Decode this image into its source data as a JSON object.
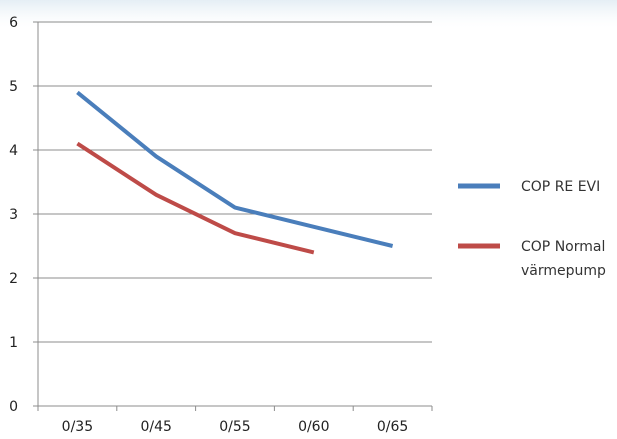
{
  "chart_data": {
    "type": "line",
    "categories": [
      "0/35",
      "0/45",
      "0/55",
      "0/60",
      "0/65"
    ],
    "y_ticks": [
      "0",
      "1",
      "2",
      "3",
      "4",
      "5",
      "6"
    ],
    "ylim": [
      0,
      6
    ],
    "grid": true,
    "legend_position": "right",
    "series": [
      {
        "name": "COP RE EVI",
        "name_lines": [
          "COP RE EVI"
        ],
        "color": "#4a7ebb",
        "values": [
          4.9,
          3.9,
          3.1,
          2.8,
          2.5
        ]
      },
      {
        "name": "COP Normal värmepump",
        "name_lines": [
          "COP Normal",
          "värmepump"
        ],
        "color": "#be4b48",
        "values": [
          4.1,
          3.3,
          2.7,
          2.4,
          null
        ]
      }
    ]
  }
}
